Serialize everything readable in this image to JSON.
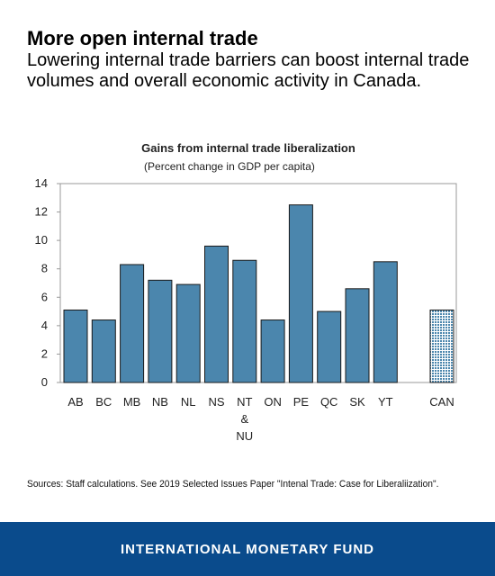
{
  "headline": "More open internal trade",
  "subhead": "Lowering internal trade barriers can boost internal trade volumes and overall economic activity in Canada.",
  "source": "Sources: Staff calculations. See 2019 Selected Issues Paper \"Intenal Trade: Case for Liberaliization\".",
  "footer": "INTERNATIONAL MONETARY FUND",
  "colors": {
    "bar": "#4b86ad",
    "bar_outline": "#1a1a1a",
    "can_bar": "#4b86ad",
    "footer_bg": "#0a4b8c"
  },
  "chart_data": {
    "type": "bar",
    "title": "Gains from internal trade liberalization",
    "subtitle": "(Percent change in GDP per capita)",
    "categories": [
      "AB",
      "BC",
      "MB",
      "NB",
      "NL",
      "NS",
      "NT & NU",
      "ON",
      "PE",
      "QC",
      "SK",
      "YT",
      "CAN"
    ],
    "values": [
      5.1,
      4.4,
      8.3,
      7.2,
      6.9,
      9.6,
      8.6,
      4.4,
      12.5,
      5.0,
      6.6,
      8.5,
      5.1
    ],
    "highlighted": [
      "CAN"
    ],
    "ylim": [
      0,
      14
    ],
    "yticks": [
      0,
      2,
      4,
      6,
      8,
      10,
      12,
      14
    ],
    "xlabel": "",
    "ylabel": "",
    "grid": false,
    "legend": "none"
  }
}
